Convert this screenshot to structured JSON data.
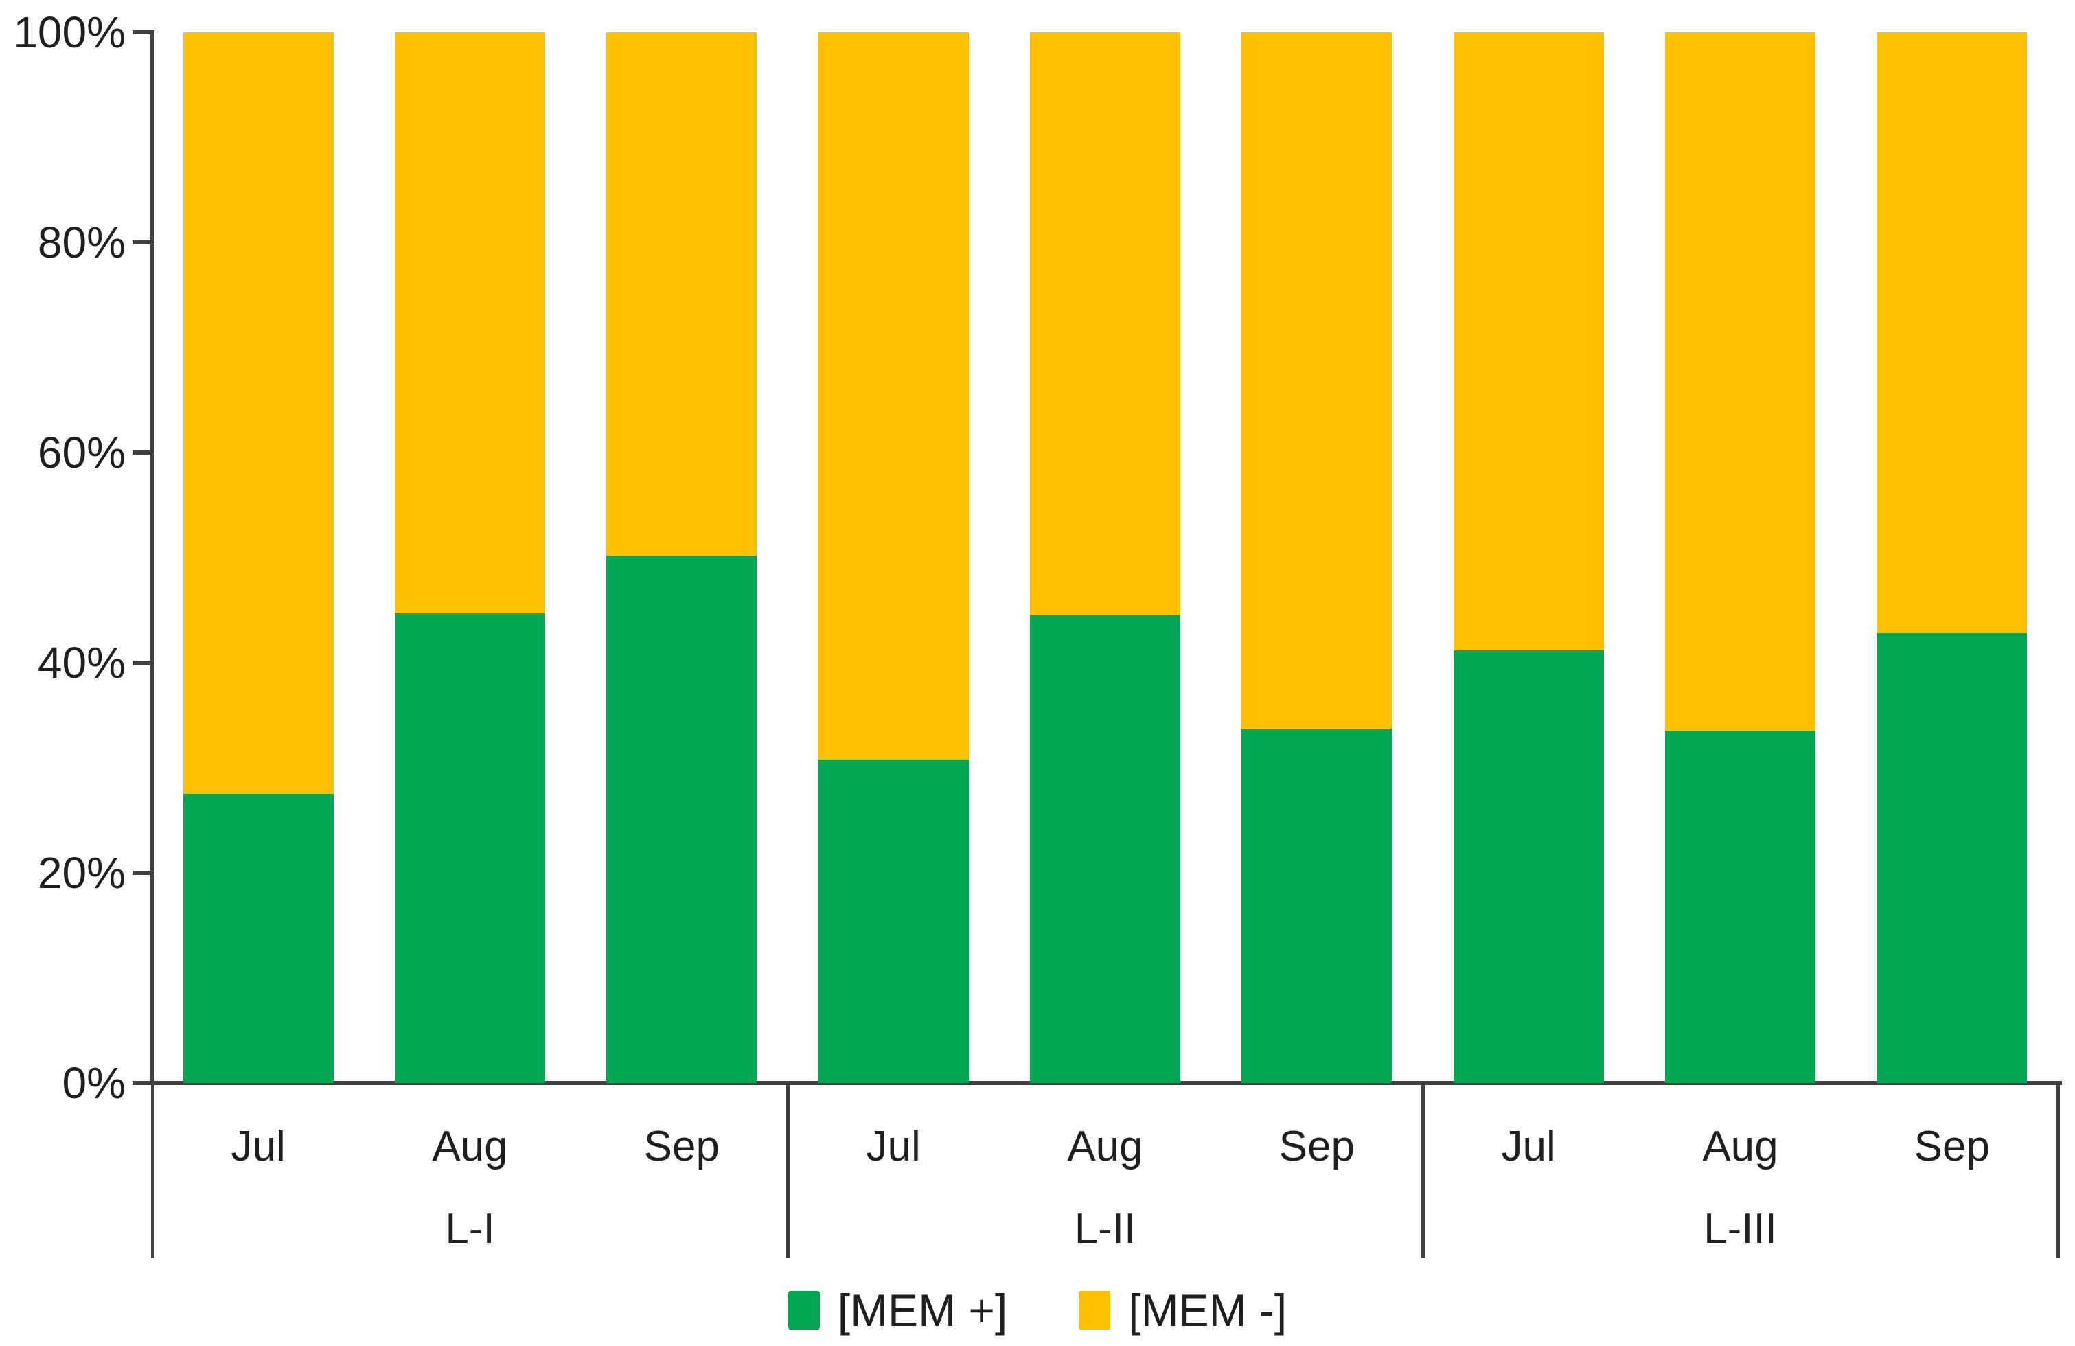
{
  "chart_data": {
    "type": "bar",
    "variant": "stacked-100-percent",
    "title": "",
    "xlabel": "",
    "ylabel": "",
    "grid": false,
    "months": [
      "Jul",
      "Aug",
      "Sep"
    ],
    "group_labels": [
      "L-I",
      "L-II",
      "L-III"
    ],
    "categories": [
      "L-I Jul",
      "L-I Aug",
      "L-I Sep",
      "L-II Jul",
      "L-II Aug",
      "L-II Sep",
      "L-III Jul",
      "L-III Aug",
      "L-III Sep"
    ],
    "series": [
      {
        "name": "[MEM +]",
        "color": "#00A651",
        "values": [
          27.5,
          44.7,
          50.2,
          30.8,
          44.6,
          33.7,
          41.2,
          33.5,
          42.8
        ]
      },
      {
        "name": "[MEM -]",
        "color": "#FFC000",
        "values": [
          72.5,
          55.3,
          49.8,
          69.2,
          55.4,
          66.3,
          58.8,
          66.5,
          57.2
        ]
      }
    ],
    "y_axis": {
      "min": 0,
      "max": 100,
      "tick_values": [
        0,
        20,
        40,
        60,
        80,
        100
      ],
      "tick_labels": [
        "0%",
        "20%",
        "40%",
        "60%",
        "80%",
        "100%"
      ]
    },
    "legend": {
      "position": "bottom-center",
      "entries": [
        {
          "label": "[MEM +]",
          "color": "#00A651"
        },
        {
          "label": "[MEM -]",
          "color": "#FFC000"
        }
      ]
    },
    "axis_color": "#404040",
    "text_color": "#1f1f1f"
  }
}
